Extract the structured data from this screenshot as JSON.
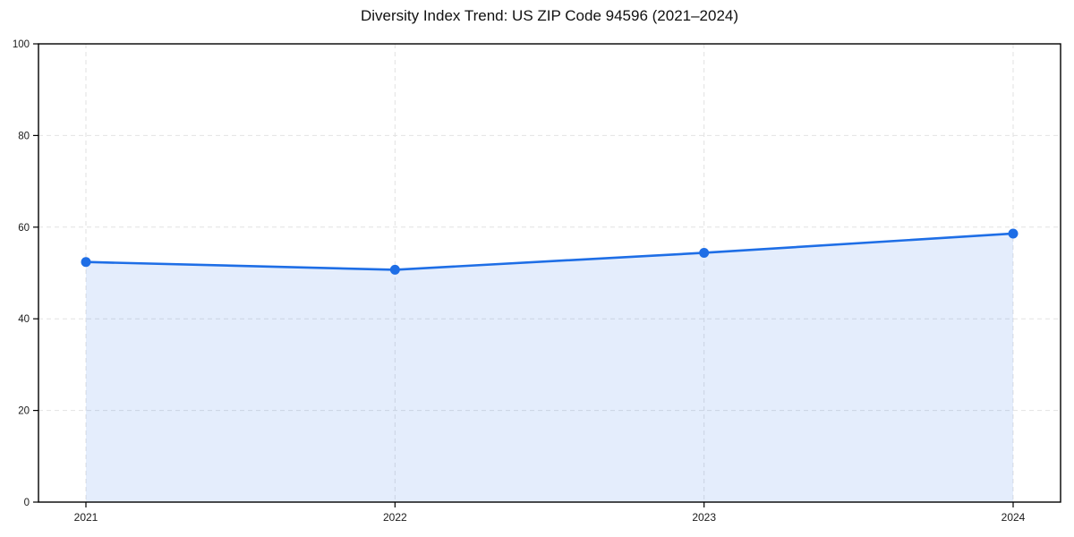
{
  "chart_data": {
    "type": "area",
    "title": "Diversity Index Trend: US ZIP Code 94596 (2021–2024)",
    "xlabel": "",
    "ylabel": "",
    "x": [
      "2021",
      "2022",
      "2023",
      "2024"
    ],
    "series": [
      {
        "name": "Diversity Index",
        "values": [
          52.4,
          50.7,
          54.4,
          58.6
        ]
      }
    ],
    "ylim": [
      0,
      100
    ],
    "yticks": [
      0,
      20,
      40,
      60,
      80,
      100
    ],
    "grid": "dashed-both-axes",
    "legend": "none",
    "style": {
      "line_color": "#1e6ee6",
      "marker_color": "#1e6ee6",
      "fill_color": "#1e6ee6",
      "fill_opacity": 0.12,
      "grid_color": "#e2e2e2",
      "frame_color": "#000000",
      "text_color": "#1a1a1a",
      "background": "#ffffff"
    }
  }
}
